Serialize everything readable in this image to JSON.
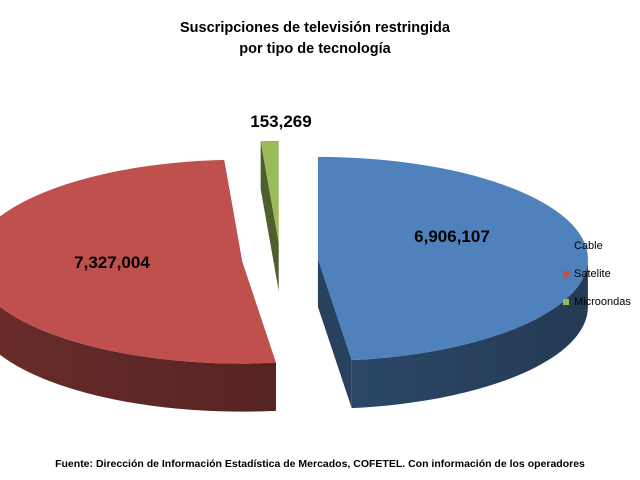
{
  "chart_data": {
    "type": "pie",
    "title_lines": [
      "Suscripciones de televisión restringida",
      "por tipo de tecnología"
    ],
    "categories": [
      "Cable",
      "Satelite",
      "Microondas"
    ],
    "values": [
      6906107,
      7327004,
      153269
    ],
    "value_labels": [
      "6,906,107",
      "7,327,004",
      "153,269"
    ],
    "colors": [
      "#4f81bd",
      "#c0504d",
      "#9bbb59"
    ],
    "legend_position": "right",
    "exploded": true,
    "style": "3d"
  },
  "source_note": "Fuente: Dirección de Información Estadística de Mercados, COFETEL. Con información de los operadores"
}
